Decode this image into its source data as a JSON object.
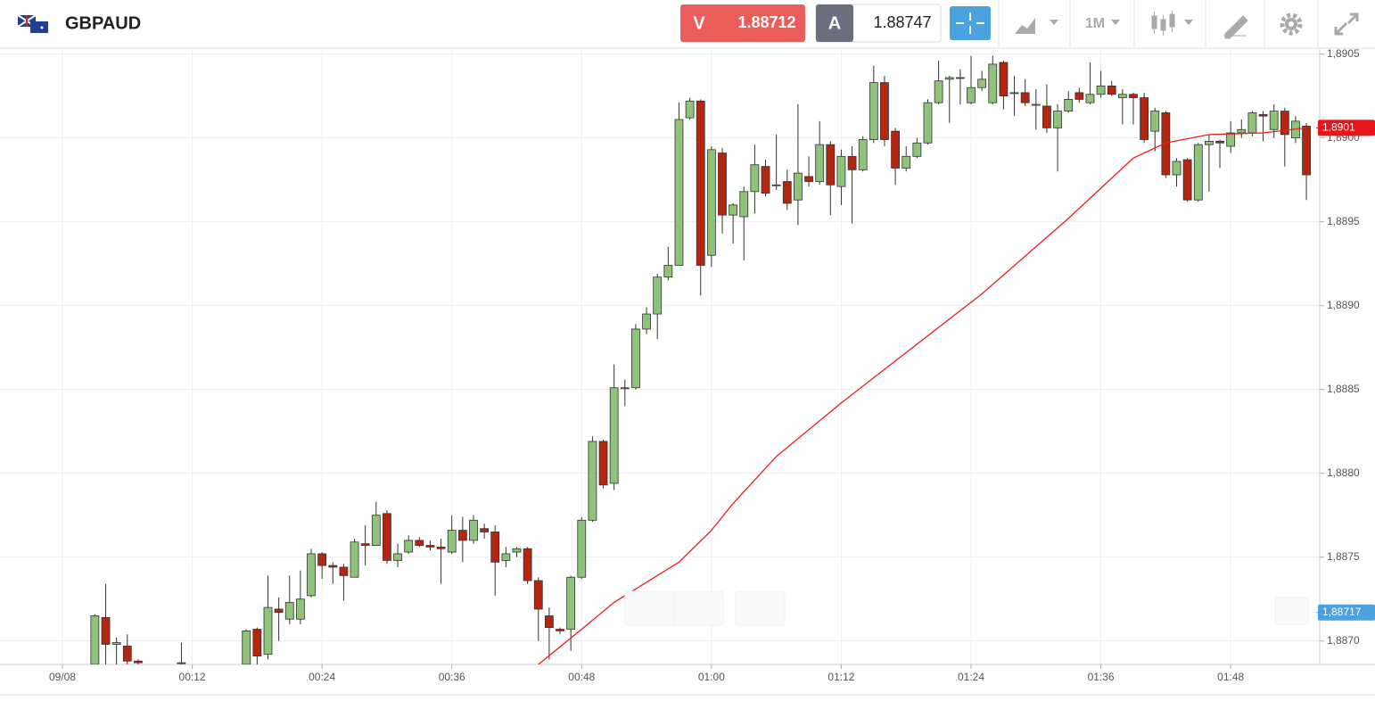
{
  "header": {
    "symbol": "GBPAUD",
    "sell": {
      "label": "V",
      "price": 1.88712
    },
    "buy": {
      "label": "A",
      "price": 1.88747
    },
    "timeframe": "1M"
  },
  "chart_data": {
    "type": "candlestick",
    "xlim": [
      -5.77,
      116.23
    ],
    "xticks": [
      {
        "value": 0,
        "label": "09/08"
      },
      {
        "value": 12,
        "label": "00:12"
      },
      {
        "value": 24,
        "label": "00:24"
      },
      {
        "value": 36,
        "label": "00:36"
      },
      {
        "value": 48,
        "label": "00:48"
      },
      {
        "value": 60,
        "label": "01:00"
      },
      {
        "value": 72,
        "label": "01:12"
      },
      {
        "value": 84,
        "label": "01:24"
      },
      {
        "value": 96,
        "label": "01:36"
      },
      {
        "value": 108,
        "label": "01:48"
      }
    ],
    "ylim": [
      1.88686,
      1.89053
    ],
    "yticks": [
      {
        "value": 1.887,
        "label": "1,8870"
      },
      {
        "value": 1.8875,
        "label": "1,8875"
      },
      {
        "value": 1.888,
        "label": "1,8880"
      },
      {
        "value": 1.8885,
        "label": "1,8885"
      },
      {
        "value": 1.889,
        "label": "1,8890"
      },
      {
        "value": 1.8895,
        "label": "1,8895"
      },
      {
        "value": 1.89,
        "label": "1,8900"
      },
      {
        "value": 1.8905,
        "label": "1,8905"
      }
    ],
    "grid": true,
    "up_color": "#8fc27a",
    "down_color": "#b3260f",
    "x": [
      3,
      4,
      5,
      6,
      7,
      11,
      17,
      18,
      19,
      20,
      21,
      22,
      23,
      24,
      25,
      26,
      27,
      28,
      29,
      30,
      31,
      32,
      33,
      34,
      35,
      36,
      37,
      38,
      39,
      40,
      41,
      42,
      43,
      44,
      45,
      46,
      47,
      48,
      49,
      50,
      51,
      52,
      53,
      54,
      55,
      56,
      57,
      58,
      59,
      60,
      61,
      62,
      63,
      64,
      65,
      66,
      67,
      68,
      69,
      70,
      71,
      72,
      73,
      74,
      75,
      76,
      77,
      78,
      79,
      80,
      81,
      82,
      83,
      84,
      85,
      86,
      87,
      88,
      89,
      90,
      91,
      92,
      93,
      94,
      95,
      96,
      97,
      98,
      99,
      100,
      101,
      102,
      103,
      104,
      105,
      106,
      107,
      108,
      109,
      110,
      111,
      112,
      113,
      114,
      115
    ],
    "open": [
      1.88686,
      1.88714,
      1.88698,
      1.88697,
      1.88688,
      1.88687,
      1.88686,
      1.88707,
      1.88692,
      1.88719,
      1.88713,
      1.88713,
      1.88727,
      1.88752,
      1.88745,
      1.88744,
      1.88738,
      1.88758,
      1.88757,
      1.88776,
      1.88748,
      1.88753,
      1.8876,
      1.88757,
      1.88756,
      1.88753,
      1.88766,
      1.8876,
      1.88767,
      1.88765,
      1.88748,
      1.88753,
      1.88755,
      1.88736,
      1.88715,
      1.88707,
      1.88707,
      1.88738,
      1.88772,
      1.88819,
      1.88794,
      1.88851,
      1.88851,
      1.88886,
      1.88895,
      1.88917,
      1.88924,
      1.89012,
      1.89022,
      1.8893,
      1.88991,
      1.88954,
      1.88953,
      1.88968,
      1.88983,
      1.88972,
      1.88974,
      1.88963,
      1.88977,
      1.88974,
      1.88996,
      1.88971,
      1.88989,
      1.88981,
      1.88999,
      1.89033,
      1.89004,
      1.88982,
      1.88989,
      1.88997,
      1.89021,
      1.89035,
      1.89036,
      1.89021,
      1.8903,
      1.89021,
      1.89045,
      1.89027,
      1.89027,
      1.8902,
      1.89019,
      1.89006,
      1.89016,
      1.89027,
      1.89021,
      1.89026,
      1.89031,
      1.89024,
      1.89026,
      1.89024,
      1.89004,
      1.89015,
      1.88978,
      1.88987,
      1.88963,
      1.88996,
      1.88998,
      1.88995,
      1.89003,
      1.89003,
      1.89014,
      1.89005,
      1.89016,
      1.89,
      1.89007
    ],
    "high": [
      1.88716,
      1.88734,
      1.88702,
      1.88704,
      1.88689,
      1.88699,
      1.88707,
      1.88708,
      1.88739,
      1.88726,
      1.88739,
      1.88742,
      1.88755,
      1.88753,
      1.88747,
      1.88746,
      1.88761,
      1.88769,
      1.88783,
      1.88778,
      1.88758,
      1.88763,
      1.88762,
      1.8876,
      1.88761,
      1.88775,
      1.88774,
      1.88775,
      1.8877,
      1.88769,
      1.88756,
      1.88756,
      1.88756,
      1.88738,
      1.8872,
      1.88708,
      1.88739,
      1.88774,
      1.88822,
      1.8882,
      1.88865,
      1.88856,
      1.88889,
      1.88899,
      1.88919,
      1.88935,
      1.89021,
      1.89024,
      1.89023,
      1.88995,
      1.88994,
      1.88961,
      1.88971,
      1.88996,
      1.88987,
      1.89002,
      1.88981,
      1.8902,
      1.88989,
      1.8901,
      1.88998,
      1.88993,
      1.88995,
      1.89001,
      1.89043,
      1.89037,
      1.89006,
      1.88995,
      1.89,
      1.89023,
      1.89046,
      1.89037,
      1.89041,
      1.89049,
      1.8904,
      1.89049,
      1.89046,
      1.89037,
      1.89035,
      1.89029,
      1.89032,
      1.8902,
      1.89028,
      1.8903,
      1.89045,
      1.8904,
      1.89034,
      1.89029,
      1.89027,
      1.89027,
      1.89018,
      1.89016,
      1.88988,
      1.88988,
      1.88997,
      1.89002,
      1.88999,
      1.8901,
      1.89011,
      1.89016,
      1.89016,
      1.8902,
      1.89018,
      1.89013,
      1.89009
    ],
    "low": [
      1.88686,
      1.88686,
      1.88686,
      1.88686,
      1.88686,
      1.88686,
      1.88686,
      1.88686,
      1.88689,
      1.887,
      1.8871,
      1.8871,
      1.88726,
      1.88737,
      1.88734,
      1.88724,
      1.88738,
      1.88745,
      1.88757,
      1.88746,
      1.88744,
      1.88752,
      1.88756,
      1.88754,
      1.88734,
      1.88752,
      1.88747,
      1.88758,
      1.88761,
      1.88727,
      1.88744,
      1.8875,
      1.88734,
      1.887,
      1.88689,
      1.88704,
      1.88694,
      1.88737,
      1.88771,
      1.88791,
      1.8879,
      1.8884,
      1.8885,
      1.88883,
      1.8888,
      1.88915,
      1.88924,
      1.89011,
      1.88906,
      1.88923,
      1.88943,
      1.88937,
      1.88927,
      1.88955,
      1.88965,
      1.88969,
      1.88957,
      1.88948,
      1.88971,
      1.88972,
      1.88954,
      1.8896,
      1.88949,
      1.8898,
      1.88997,
      1.88995,
      1.88972,
      1.8898,
      1.88988,
      1.88996,
      1.8902,
      1.89009,
      1.8902,
      1.8902,
      1.89028,
      1.8902,
      1.89017,
      1.89013,
      1.89019,
      1.89005,
      1.89003,
      1.8898,
      1.89015,
      1.89021,
      1.8902,
      1.89024,
      1.89025,
      1.89008,
      1.89008,
      1.88997,
      1.88992,
      1.88976,
      1.88971,
      1.88962,
      1.88962,
      1.88968,
      1.88982,
      1.88991,
      1.89,
      1.89001,
      1.88998,
      1.89,
      1.88983,
      1.88997,
      1.88963
    ],
    "close": [
      1.88715,
      1.88698,
      1.88699,
      1.88688,
      1.88687,
      1.88687,
      1.88706,
      1.88691,
      1.8872,
      1.88717,
      1.88723,
      1.88725,
      1.88752,
      1.88745,
      1.88744,
      1.88739,
      1.88759,
      1.88757,
      1.88775,
      1.88748,
      1.88752,
      1.8876,
      1.88757,
      1.88756,
      1.88755,
      1.88766,
      1.8876,
      1.88772,
      1.88765,
      1.88747,
      1.88752,
      1.88755,
      1.88736,
      1.88719,
      1.88708,
      1.88706,
      1.88738,
      1.88772,
      1.88819,
      1.88793,
      1.88851,
      1.88851,
      1.88886,
      1.88895,
      1.88917,
      1.88924,
      1.89011,
      1.89022,
      1.88924,
      1.88993,
      1.88954,
      1.8896,
      1.88968,
      1.88984,
      1.88967,
      1.88972,
      1.88961,
      1.88979,
      1.88974,
      1.88996,
      1.88972,
      1.88989,
      1.88981,
      1.88999,
      1.89033,
      1.88999,
      1.88982,
      1.88989,
      1.88997,
      1.89021,
      1.89034,
      1.89036,
      1.89036,
      1.8903,
      1.89035,
      1.89044,
      1.89025,
      1.89027,
      1.89021,
      1.8902,
      1.89006,
      1.89016,
      1.89023,
      1.89023,
      1.89026,
      1.89031,
      1.89026,
      1.89026,
      1.89024,
      1.88999,
      1.89016,
      1.88978,
      1.88986,
      1.88963,
      1.88996,
      1.88998,
      1.88997,
      1.89003,
      1.89005,
      1.89015,
      1.89013,
      1.89016,
      1.89002,
      1.8901,
      1.88978
    ],
    "moving_average": {
      "color": "#ee1c1c",
      "x": [
        44,
        48,
        51,
        57,
        60,
        62,
        66,
        72,
        76,
        85,
        93,
        99,
        102,
        106,
        111,
        115
      ],
      "values": [
        1.88686,
        1.88707,
        1.88723,
        1.88747,
        1.88766,
        1.88782,
        1.8881,
        1.88842,
        1.88862,
        1.88907,
        1.88952,
        1.88988,
        1.88997,
        1.89002,
        1.89003,
        1.89006
      ]
    },
    "price_tags": [
      {
        "value": 1.89006,
        "label": "1,8901",
        "color": "#e8141b"
      },
      {
        "value": 1.88717,
        "label": "1,88717",
        "color": "#4aa3df"
      }
    ]
  }
}
